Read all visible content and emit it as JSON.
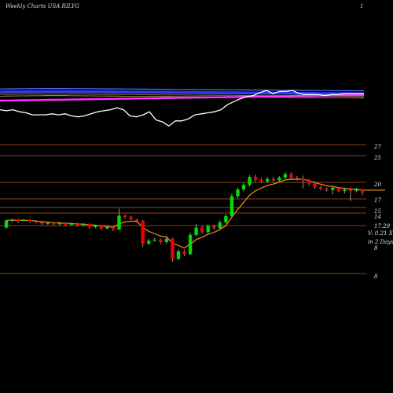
{
  "header": {
    "left": "Weekly Charts USA RILYG",
    "right": "1"
  },
  "colors": {
    "background": "#000000",
    "bull": "#00dd00",
    "bear": "#ee0000",
    "ema": "#e08a1c",
    "guide": "#8b4513",
    "price_line": "#ffffff",
    "ma_blue": "#1f3cff",
    "ma_pink": "#ff33ff"
  },
  "chart_data": [
    {
      "type": "line",
      "title": "",
      "series": [
        {
          "name": "",
          "color": "#ffffff",
          "values": [
            62,
            61,
            62,
            60,
            59,
            57,
            57,
            57,
            58,
            57,
            58,
            56,
            55,
            56,
            58,
            60,
            61,
            62,
            64,
            62,
            56,
            55,
            57,
            60,
            52,
            50,
            46,
            51,
            51,
            53,
            57,
            58,
            59,
            60,
            62,
            67,
            70,
            73,
            75,
            76,
            79,
            81,
            78,
            80,
            80,
            81,
            78,
            77,
            77,
            77,
            76,
            77,
            77,
            78,
            78,
            78,
            78
          ]
        },
        {
          "name": "",
          "color": "#ff33ff",
          "values": [
            71,
            71.1,
            71.2,
            71.3,
            71.4,
            71.5,
            71.6,
            71.7,
            71.8,
            71.9,
            72,
            72.1,
            72.2,
            72.3,
            72.4,
            72.5,
            72.6,
            72.7,
            72.8,
            72.9,
            73,
            73.1,
            73.2,
            73.3,
            73.4,
            73.5,
            73.6,
            73.7,
            73.8,
            73.9,
            74,
            74.1,
            74.2,
            74.3,
            74.4,
            74.5,
            74.6,
            74.7,
            74.8,
            74.9,
            75,
            75.1,
            75.2,
            75.3,
            75.4,
            75.5,
            75.6,
            75.7,
            75.8,
            75.9,
            76,
            76.1,
            76.2,
            76.3,
            76.4,
            76.5,
            76.6
          ]
        },
        {
          "name": "",
          "color": "#1f3cff",
          "values": [
            80,
            80.1,
            80.2,
            80.3,
            80.3,
            80.4,
            80.4,
            80.5,
            80.5,
            80.5,
            80.5,
            80.4,
            80.4,
            80.3,
            80.3,
            80.2,
            80.2,
            80.1,
            80.1,
            80,
            80,
            79.9,
            79.9,
            79.8,
            79.8,
            79.7,
            79.7,
            79.6,
            79.6,
            79.5,
            79.5,
            79.4,
            79.4,
            79.3,
            79.3,
            79.2,
            79.2,
            79.1,
            79.1,
            79,
            79,
            78.9,
            78.9,
            78.8,
            78.8,
            78.7,
            78.7,
            78.6,
            78.6,
            78.5,
            78.5,
            78.4,
            78.4,
            78.3,
            78.3,
            78.2,
            78.2
          ]
        }
      ]
    },
    {
      "type": "candlestick",
      "title": "",
      "ylabels": [
        "27",
        "25",
        "20",
        "17",
        "15",
        "14",
        "17.29",
        "8",
        "8"
      ],
      "annotations": [
        "V: 0.21 X",
        "in 2 Days"
      ],
      "ema_color": "#e08a1c",
      "candles": [
        [
          10.5,
          12.0,
          10.2,
          12.1
        ],
        [
          12.0,
          12.2,
          11.6,
          12.4
        ],
        [
          12.1,
          11.9,
          11.5,
          12.3
        ],
        [
          11.9,
          12.1,
          11.7,
          12.3
        ],
        [
          12.1,
          11.8,
          11.5,
          12.3
        ],
        [
          11.8,
          11.6,
          11.4,
          12.0
        ],
        [
          11.6,
          11.3,
          11.0,
          11.8
        ],
        [
          11.3,
          11.5,
          11.1,
          11.7
        ],
        [
          11.5,
          11.2,
          11.0,
          11.6
        ],
        [
          11.2,
          11.4,
          11.0,
          11.6
        ],
        [
          11.4,
          11.1,
          10.8,
          11.6
        ],
        [
          11.1,
          11.3,
          10.9,
          11.5
        ],
        [
          11.3,
          11.0,
          10.7,
          11.5
        ],
        [
          11.0,
          11.2,
          10.8,
          11.4
        ],
        [
          11.2,
          10.6,
          10.3,
          11.4
        ],
        [
          10.6,
          10.9,
          10.4,
          11.1
        ],
        [
          10.9,
          10.3,
          10.0,
          11.1
        ],
        [
          10.3,
          10.6,
          10.1,
          10.8
        ],
        [
          10.6,
          10.1,
          9.8,
          10.8
        ],
        [
          10.1,
          13.0,
          10.0,
          14.5
        ],
        [
          13.0,
          12.7,
          12.4,
          13.2
        ],
        [
          12.7,
          12.2,
          12.0,
          13.0
        ],
        [
          12.2,
          11.9,
          11.6,
          12.4
        ],
        [
          11.9,
          7.2,
          6.5,
          12.1
        ],
        [
          7.2,
          7.8,
          6.9,
          8.2
        ],
        [
          7.8,
          8.0,
          7.6,
          8.4
        ],
        [
          8.0,
          7.5,
          7.2,
          8.2
        ],
        [
          7.5,
          8.2,
          7.1,
          8.6
        ],
        [
          8.2,
          4.0,
          3.4,
          8.4
        ],
        [
          4.0,
          5.6,
          3.8,
          6.0
        ],
        [
          5.6,
          5.0,
          4.6,
          5.9
        ],
        [
          5.0,
          9.0,
          4.8,
          9.4
        ],
        [
          9.0,
          10.5,
          8.6,
          11.3
        ],
        [
          10.5,
          9.6,
          9.3,
          10.8
        ],
        [
          9.6,
          10.8,
          9.3,
          11.2
        ],
        [
          10.8,
          10.4,
          10.0,
          11.1
        ],
        [
          10.4,
          11.6,
          10.2,
          12.0
        ],
        [
          11.6,
          12.9,
          11.3,
          13.3
        ],
        [
          12.9,
          17.0,
          12.6,
          17.6
        ],
        [
          17.0,
          18.4,
          16.6,
          18.8
        ],
        [
          18.4,
          19.4,
          18.0,
          19.8
        ],
        [
          19.4,
          21.0,
          19.0,
          21.4
        ],
        [
          21.0,
          20.4,
          20.0,
          21.4
        ],
        [
          20.4,
          20.1,
          19.8,
          20.8
        ],
        [
          20.1,
          20.6,
          19.8,
          21.0
        ],
        [
          20.6,
          20.3,
          20.0,
          21.0
        ],
        [
          20.3,
          20.9,
          20.0,
          21.2
        ],
        [
          20.9,
          21.6,
          20.6,
          22.0
        ],
        [
          21.6,
          20.8,
          20.4,
          22.0
        ],
        [
          20.8,
          20.7,
          20.3,
          21.2
        ],
        [
          20.7,
          20.3,
          18.6,
          21.3
        ],
        [
          20.3,
          19.6,
          19.2,
          20.6
        ],
        [
          19.6,
          18.9,
          18.5,
          20.0
        ],
        [
          18.9,
          18.6,
          18.2,
          19.2
        ],
        [
          18.6,
          18.3,
          18.0,
          18.8
        ],
        [
          18.3,
          18.8,
          17.4,
          19.1
        ],
        [
          18.8,
          18.1,
          17.8,
          19.0
        ],
        [
          18.1,
          18.4,
          17.6,
          18.7
        ],
        [
          18.4,
          18.1,
          16.0,
          18.6
        ],
        [
          18.1,
          18.4,
          17.8,
          18.7
        ],
        [
          18.4,
          17.8,
          17.2,
          18.6
        ]
      ]
    }
  ]
}
